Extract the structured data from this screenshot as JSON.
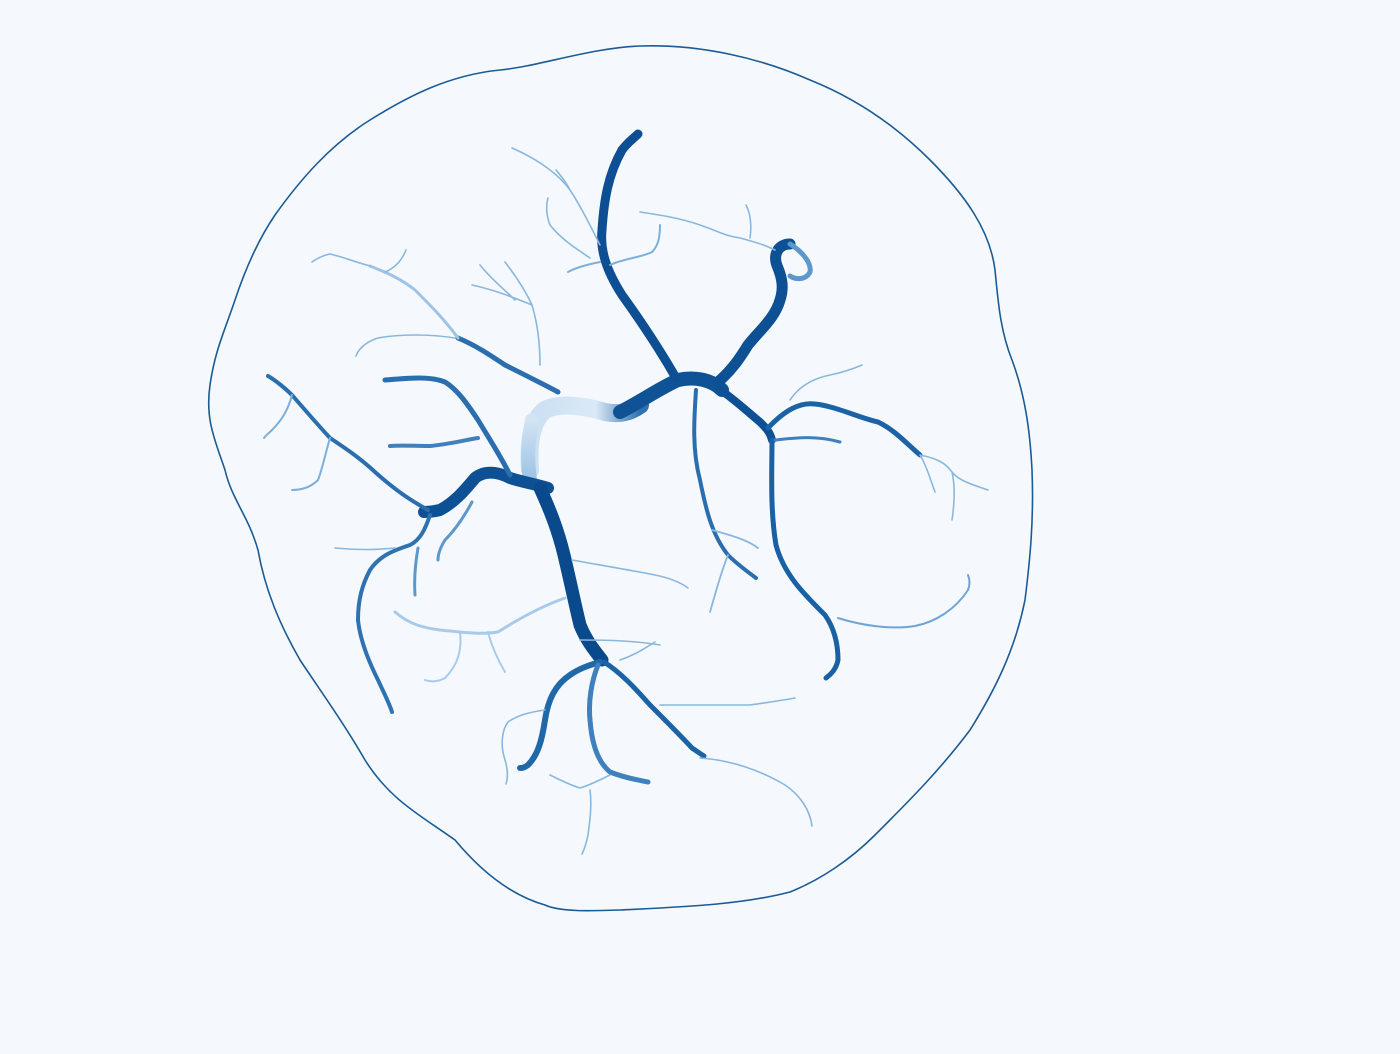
{
  "image": {
    "subject": "vascular-network",
    "colors": {
      "background": "#f5f9fd",
      "outline": "#1b5b95",
      "vessel_dark": "#0a4a8c",
      "vessel_mid": "#2f72b0",
      "vessel_light": "#6ea6d4",
      "vessel_pale": "#b8d4ec"
    }
  }
}
